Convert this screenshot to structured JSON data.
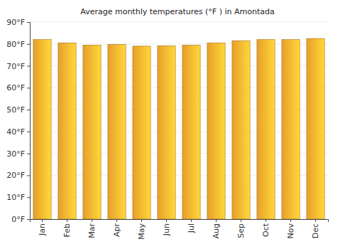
{
  "chart_data": {
    "type": "bar",
    "title": "Average monthly temperatures (°F ) in Amontada",
    "categories": [
      "Jan",
      "Feb",
      "Mar",
      "Apr",
      "May",
      "Jun",
      "Jul",
      "Aug",
      "Sep",
      "Oct",
      "Nov",
      "Dec"
    ],
    "values": [
      82,
      80.5,
      79.5,
      79.8,
      79,
      79.2,
      79.5,
      80.5,
      81.5,
      82,
      82,
      82.5
    ],
    "color": "#fdae2f",
    "ylim": [
      0,
      90
    ],
    "yticks": [
      {
        "value": 0,
        "label": "0°F"
      },
      {
        "value": 10,
        "label": "10°F"
      },
      {
        "value": 20,
        "label": "20°F"
      },
      {
        "value": 30,
        "label": "30°F"
      },
      {
        "value": 40,
        "label": "40°F"
      },
      {
        "value": 50,
        "label": "50°F"
      },
      {
        "value": 60,
        "label": "60°F"
      },
      {
        "value": 70,
        "label": "70°F"
      },
      {
        "value": 80,
        "label": "80°F"
      },
      {
        "value": 90,
        "label": "90°F"
      }
    ],
    "grid": true
  }
}
